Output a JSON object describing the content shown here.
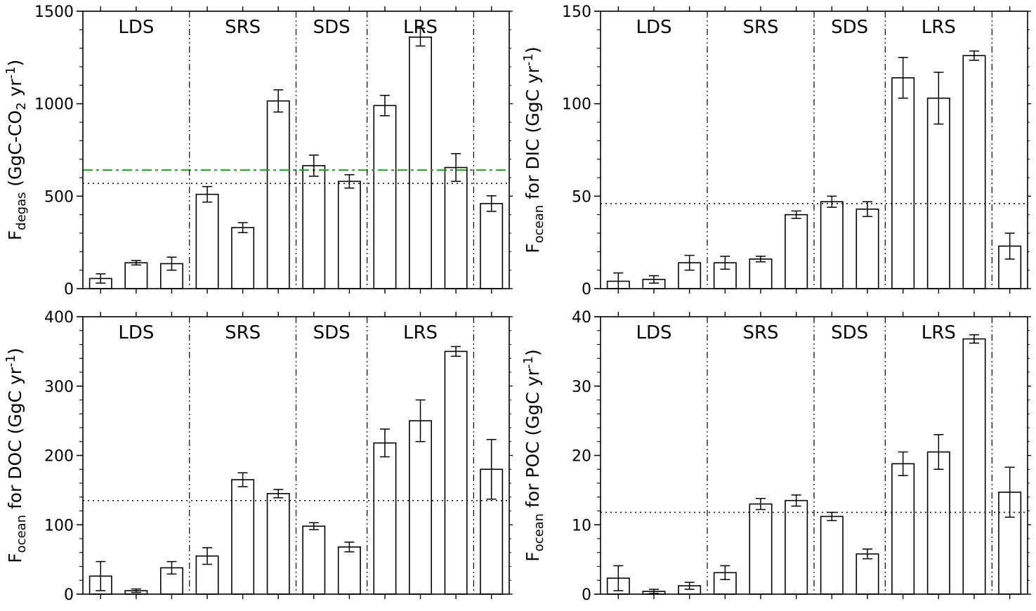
{
  "figure": {
    "background": "#ffffff",
    "bar_fill": "#ffffff",
    "axis_color": "#000000",
    "dotted_ref_color": "#000000",
    "green_ref_color": "#00b000",
    "group_labels": [
      "LDS",
      "SRS",
      "SDS",
      "LRS"
    ]
  },
  "chart_data": [
    {
      "type": "bar",
      "id": "degas",
      "position": "top-left",
      "ylabel": "Fdegas (GgC-CO2 yr-1)",
      "ylabel_parts": [
        {
          "t": "F"
        },
        {
          "t": "degas",
          "s": "sub"
        },
        {
          "t": " (GgC-CO"
        },
        {
          "t": "2",
          "s": "sub"
        },
        {
          "t": " yr"
        },
        {
          "t": "-1",
          "s": "sup"
        },
        {
          "t": ")"
        }
      ],
      "ylim": [
        0,
        1500
      ],
      "yticks": [
        0,
        500,
        1000,
        1500
      ],
      "minor_divisions": 5,
      "groups": [
        {
          "label": "LDS",
          "bars": 3
        },
        {
          "label": "SRS",
          "bars": 3
        },
        {
          "label": "SDS",
          "bars": 2
        },
        {
          "label": "LRS",
          "bars": 3
        },
        {
          "label": "",
          "bars": 1
        }
      ],
      "values": [
        55,
        140,
        135,
        510,
        330,
        1015,
        665,
        580,
        990,
        1360,
        655,
        460
      ],
      "errors": [
        25,
        12,
        35,
        42,
        27,
        60,
        57,
        36,
        55,
        48,
        75,
        42
      ],
      "ref_lines": [
        {
          "value": 569,
          "color": "#000000",
          "style": "dotted"
        },
        {
          "value": 641,
          "color": "#00b000",
          "style": "dashdot"
        }
      ]
    },
    {
      "type": "bar",
      "id": "dic",
      "position": "top-right",
      "ylabel": "Focean for DIC (GgC yr-1)",
      "ylabel_parts": [
        {
          "t": "F"
        },
        {
          "t": "ocean",
          "s": "sub"
        },
        {
          "t": " for DIC (GgC yr"
        },
        {
          "t": "-1",
          "s": "sup"
        },
        {
          "t": ")"
        }
      ],
      "ylim": [
        0,
        150
      ],
      "yticks": [
        0,
        50,
        100,
        150
      ],
      "minor_divisions": 5,
      "groups": [
        {
          "label": "LDS",
          "bars": 3
        },
        {
          "label": "SRS",
          "bars": 3
        },
        {
          "label": "SDS",
          "bars": 2
        },
        {
          "label": "LRS",
          "bars": 3
        },
        {
          "label": "",
          "bars": 1
        }
      ],
      "values": [
        4,
        5,
        14,
        14,
        16,
        40,
        47,
        43,
        114,
        103,
        126,
        23
      ],
      "errors": [
        4.5,
        2,
        4,
        3.5,
        1.5,
        2,
        3,
        4,
        11,
        14,
        2.5,
        7
      ],
      "ref_lines": [
        {
          "value": 46,
          "color": "#000000",
          "style": "dotted"
        }
      ]
    },
    {
      "type": "bar",
      "id": "doc",
      "position": "bottom-left",
      "ylabel": "Focean for DOC (GgC yr-1)",
      "ylabel_parts": [
        {
          "t": "F"
        },
        {
          "t": "ocean",
          "s": "sub"
        },
        {
          "t": " for DOC (GgC yr"
        },
        {
          "t": "-1",
          "s": "sup"
        },
        {
          "t": ")"
        }
      ],
      "ylim": [
        0,
        400
      ],
      "yticks": [
        0,
        100,
        200,
        300,
        400
      ],
      "minor_divisions": 5,
      "groups": [
        {
          "label": "LDS",
          "bars": 3
        },
        {
          "label": "SRS",
          "bars": 3
        },
        {
          "label": "SDS",
          "bars": 2
        },
        {
          "label": "LRS",
          "bars": 3
        },
        {
          "label": "",
          "bars": 1
        }
      ],
      "values": [
        26,
        5,
        38,
        55,
        165,
        145,
        98,
        68,
        218,
        250,
        350,
        180
      ],
      "errors": [
        21,
        2.5,
        9,
        12,
        10,
        6,
        5,
        7,
        20,
        30,
        7,
        43
      ],
      "ref_lines": [
        {
          "value": 135,
          "color": "#000000",
          "style": "dotted"
        }
      ]
    },
    {
      "type": "bar",
      "id": "poc",
      "position": "bottom-right",
      "ylabel": "Focean for POC (GgC yr-1)",
      "ylabel_parts": [
        {
          "t": "F"
        },
        {
          "t": "ocean",
          "s": "sub"
        },
        {
          "t": " for POC (GgC yr"
        },
        {
          "t": "-1",
          "s": "sup"
        },
        {
          "t": ")"
        }
      ],
      "ylim": [
        0,
        40
      ],
      "yticks": [
        0,
        10,
        20,
        30,
        40
      ],
      "minor_divisions": 5,
      "groups": [
        {
          "label": "LDS",
          "bars": 3
        },
        {
          "label": "SRS",
          "bars": 3
        },
        {
          "label": "SDS",
          "bars": 2
        },
        {
          "label": "LRS",
          "bars": 3
        },
        {
          "label": "",
          "bars": 1
        }
      ],
      "values": [
        2.3,
        0.4,
        1.2,
        3.1,
        13,
        13.5,
        11.2,
        5.8,
        18.8,
        20.5,
        36.8,
        14.7
      ],
      "errors": [
        1.8,
        0.3,
        0.5,
        1.0,
        0.8,
        0.8,
        0.6,
        0.7,
        1.7,
        2.5,
        0.6,
        3.6
      ],
      "ref_lines": [
        {
          "value": 11.8,
          "color": "#000000",
          "style": "dotted"
        }
      ]
    }
  ]
}
